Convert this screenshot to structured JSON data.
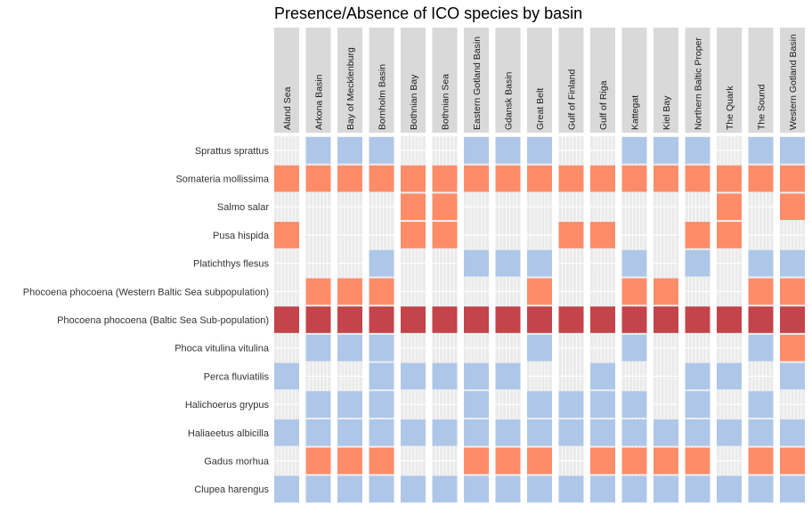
{
  "chart_data": {
    "type": "heatmap",
    "title": "Presence/Absence of ICO species by basin",
    "basins": [
      "Aland Sea",
      "Arkona Basin",
      "Bay of Mecklenburg",
      "Bornholm Basin",
      "Bothnian Bay",
      "Bothnian Sea",
      "Eastern Gotland Basin",
      "Gdansk Basin",
      "Great Belt",
      "Gulf of Finland",
      "Gulf of Riga",
      "Kattegat",
      "Kiel Bay",
      "Northern Baltic Proper",
      "The Quark",
      "The Sound",
      "Western Gotland Basin"
    ],
    "species": [
      {
        "name": "Sprattus sprattus",
        "status": "blue",
        "presence": [
          0,
          1,
          1,
          1,
          0,
          0,
          1,
          1,
          1,
          0,
          0,
          1,
          1,
          1,
          0,
          1,
          1
        ]
      },
      {
        "name": "Somateria mollissima",
        "status": "orange",
        "presence": [
          1,
          1,
          1,
          1,
          1,
          1,
          1,
          1,
          1,
          1,
          1,
          1,
          1,
          1,
          1,
          1,
          1
        ]
      },
      {
        "name": "Salmo salar",
        "status": "orange",
        "presence": [
          0,
          0,
          0,
          0,
          1,
          1,
          0,
          0,
          0,
          0,
          0,
          0,
          0,
          0,
          1,
          0,
          1
        ]
      },
      {
        "name": "Pusa hispida",
        "status": "orange",
        "presence": [
          1,
          0,
          0,
          0,
          1,
          1,
          0,
          0,
          0,
          1,
          1,
          0,
          0,
          1,
          1,
          0,
          0
        ]
      },
      {
        "name": "Platichthys flesus",
        "status": "blue",
        "presence": [
          0,
          0,
          0,
          1,
          0,
          0,
          1,
          1,
          1,
          0,
          0,
          1,
          0,
          1,
          0,
          1,
          1
        ]
      },
      {
        "name": "Phocoena phocoena (Western Baltic Sea subpopulation)",
        "status": "orange",
        "presence": [
          0,
          1,
          1,
          1,
          0,
          0,
          0,
          0,
          1,
          0,
          0,
          1,
          1,
          0,
          0,
          1,
          1
        ]
      },
      {
        "name": "Phocoena phocoena (Baltic Sea Sub-population)",
        "status": "red",
        "presence": [
          1,
          1,
          1,
          1,
          1,
          1,
          1,
          1,
          1,
          1,
          1,
          1,
          1,
          1,
          1,
          1,
          1
        ]
      },
      {
        "name": "Phoca vitulina vitulina",
        "status": "mixed",
        "presence": [
          0,
          1,
          1,
          1,
          0,
          0,
          0,
          0,
          1,
          0,
          0,
          1,
          0,
          0,
          0,
          1,
          1
        ],
        "overrides": {
          "16": "orange"
        }
      },
      {
        "name": "Perca fluviatilis",
        "status": "blue",
        "presence": [
          1,
          0,
          0,
          1,
          1,
          1,
          1,
          1,
          0,
          0,
          1,
          0,
          0,
          1,
          1,
          0,
          1
        ]
      },
      {
        "name": "Halichoerus grypus",
        "status": "blue",
        "presence": [
          0,
          1,
          1,
          1,
          0,
          0,
          1,
          0,
          1,
          1,
          1,
          1,
          0,
          1,
          0,
          1,
          0
        ]
      },
      {
        "name": "Haliaeetus albicilla",
        "status": "blue",
        "presence": [
          1,
          1,
          1,
          1,
          1,
          1,
          1,
          1,
          1,
          1,
          1,
          1,
          1,
          1,
          1,
          1,
          1
        ]
      },
      {
        "name": "Gadus morhua",
        "status": "orange",
        "presence": [
          0,
          1,
          1,
          1,
          0,
          0,
          1,
          1,
          1,
          0,
          1,
          1,
          1,
          1,
          0,
          1,
          1
        ]
      },
      {
        "name": "Clupea harengus",
        "status": "blue",
        "presence": [
          1,
          1,
          1,
          1,
          1,
          1,
          1,
          1,
          1,
          1,
          1,
          1,
          1,
          1,
          1,
          1,
          1
        ]
      }
    ],
    "colors": {
      "blue": "#aec7e8",
      "orange": "#ff8c69",
      "red": "#c3444a",
      "panel": "#ebebeb",
      "gridline": "#ffffff",
      "strip": "#d9d9d9"
    },
    "grid": true,
    "legend": "none"
  }
}
